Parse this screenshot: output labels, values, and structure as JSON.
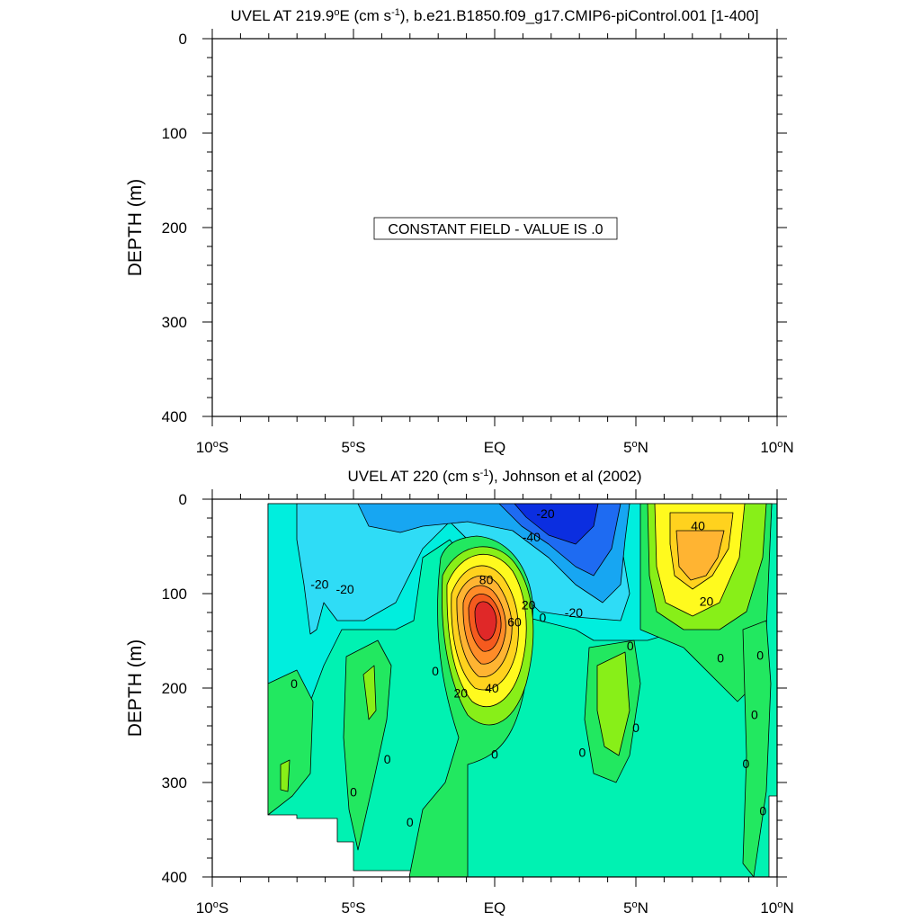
{
  "chart_data": [
    {
      "type": "contour",
      "title": "UVEL AT 219.9°E (cm s⁻¹), b.e21.B1850.f09_g17.CMIP6-piControl.001 [1-400]",
      "title_parts": {
        "a": "UVEL AT 219.9",
        "deg": "o",
        "b": "E (cm s",
        "sup": "-1",
        "c": "), b.e21.B1850.f09_g17.CMIP6-piControl.001 [1-400]"
      },
      "ylabel": "DEPTH (m)",
      "y_ticks": [
        "0",
        "100",
        "200",
        "300",
        "400"
      ],
      "x_ticks": [
        {
          "num": "10",
          "deg": "o",
          "hem": "S"
        },
        {
          "num": "5",
          "deg": "o",
          "hem": "S"
        },
        {
          "num": "EQ",
          "deg": "",
          "hem": ""
        },
        {
          "num": "5",
          "deg": "o",
          "hem": "N"
        },
        {
          "num": "10",
          "deg": "o",
          "hem": "N"
        }
      ],
      "xlim": [
        -10,
        10
      ],
      "ylim": [
        0,
        400
      ],
      "annotation": "CONSTANT FIELD - VALUE IS .0",
      "field_value": 0
    },
    {
      "type": "contour",
      "title": "UVEL AT 220 (cm s⁻¹), Johnson et al (2002)",
      "title_parts": {
        "a": "UVEL AT 220 (cm s",
        "sup": "-1",
        "b": "), Johnson et al (2002)"
      },
      "ylabel": "DEPTH (m)",
      "y_ticks": [
        "0",
        "100",
        "200",
        "300",
        "400"
      ],
      "x_ticks": [
        {
          "num": "10",
          "deg": "o",
          "hem": "S"
        },
        {
          "num": "5",
          "deg": "o",
          "hem": "S"
        },
        {
          "num": "EQ",
          "deg": "",
          "hem": ""
        },
        {
          "num": "5",
          "deg": "o",
          "hem": "N"
        },
        {
          "num": "10",
          "deg": "o",
          "hem": "N"
        }
      ],
      "xlim": [
        -10,
        10
      ],
      "ylim": [
        0,
        400
      ],
      "contour_interval": 10,
      "features": [
        {
          "label": "80",
          "lat": 0,
          "depth": 110,
          "value": 85
        },
        {
          "label": "-40",
          "lat": 2.5,
          "depth": 10,
          "value": -50
        },
        {
          "label": "40",
          "lat": 7.5,
          "depth": 60,
          "value": 45
        }
      ],
      "contour_labels": [
        {
          "text": "-20",
          "lat": 1.8,
          "depth": 15
        },
        {
          "text": "-40",
          "lat": 1.3,
          "depth": 40
        },
        {
          "text": "80",
          "lat": -0.3,
          "depth": 85
        },
        {
          "text": "20",
          "lat": 1.2,
          "depth": 112
        },
        {
          "text": "0",
          "lat": 1.7,
          "depth": 125
        },
        {
          "text": "60",
          "lat": 0.7,
          "depth": 130
        },
        {
          "text": "-20",
          "lat": 2.8,
          "depth": 120
        },
        {
          "text": "40",
          "lat": 7.2,
          "depth": 28
        },
        {
          "text": "20",
          "lat": 7.5,
          "depth": 108
        },
        {
          "text": "-20",
          "lat": -6.2,
          "depth": 90
        },
        {
          "text": "-20",
          "lat": -5.3,
          "depth": 95
        },
        {
          "text": "20",
          "lat": -1.2,
          "depth": 205
        },
        {
          "text": "40",
          "lat": -0.1,
          "depth": 200
        },
        {
          "text": "0",
          "lat": -2.1,
          "depth": 182
        },
        {
          "text": "0",
          "lat": -7.1,
          "depth": 195
        },
        {
          "text": "0",
          "lat": 4.8,
          "depth": 155
        },
        {
          "text": "0",
          "lat": 8.0,
          "depth": 168
        },
        {
          "text": "0",
          "lat": 9.4,
          "depth": 165
        },
        {
          "text": "0",
          "lat": 9.2,
          "depth": 228
        },
        {
          "text": "0",
          "lat": 5.0,
          "depth": 242
        },
        {
          "text": "0",
          "lat": 3.1,
          "depth": 268
        },
        {
          "text": "0",
          "lat": 0.0,
          "depth": 270
        },
        {
          "text": "0",
          "lat": -3.8,
          "depth": 275
        },
        {
          "text": "0",
          "lat": -5.0,
          "depth": 310
        },
        {
          "text": "0",
          "lat": 8.9,
          "depth": 280
        },
        {
          "text": "0",
          "lat": 9.5,
          "depth": 330
        },
        {
          "text": "0",
          "lat": -3.0,
          "depth": 342
        }
      ]
    }
  ],
  "colors": {
    "neg50": "#0b2ee0",
    "neg40": "#1e6bf2",
    "neg30": "#17a6f2",
    "neg20": "#2fdcf6",
    "neg10": "#00eede",
    "zero": "#00f2b2",
    "pos10": "#22e860",
    "pos20": "#88ef18",
    "pos30": "#fffa1e",
    "pos40": "#ffd21e",
    "pos50": "#ffb432",
    "pos60": "#ff8c28",
    "pos70": "#f55a1e",
    "pos80": "#e02828"
  }
}
